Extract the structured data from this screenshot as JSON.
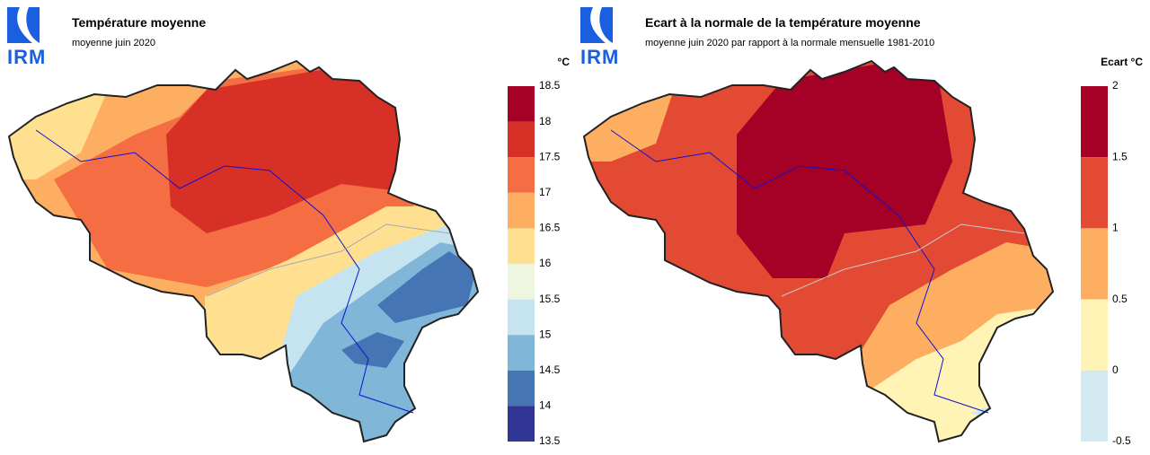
{
  "maps": [
    {
      "logo": "IRM",
      "title": "Température moyenne",
      "subtitle": "moyenne juin 2020",
      "unit": "°C",
      "legend_ticks": [
        18.5,
        18,
        17.5,
        17,
        16.5,
        16,
        15.5,
        15,
        14.5,
        14,
        13.5
      ],
      "legend_colors": [
        "#a50026",
        "#d73027",
        "#f46d43",
        "#fdae61",
        "#fee090",
        "#eef6df",
        "#c6e4f0",
        "#80b6d8",
        "#4575b4",
        "#313695"
      ]
    },
    {
      "logo": "IRM",
      "title": "Ecart à la normale de la température moyenne",
      "subtitle": "moyenne juin 2020 par rapport à la normale mensuelle 1981-2010",
      "unit": "Ecart  °C",
      "legend_ticks": [
        2,
        1.5,
        1,
        0.5,
        0,
        -0.5
      ],
      "legend_colors": [
        "#a50026",
        "#e34a33",
        "#fdae61",
        "#fff3b5",
        "#d3e9f1"
      ]
    }
  ]
}
